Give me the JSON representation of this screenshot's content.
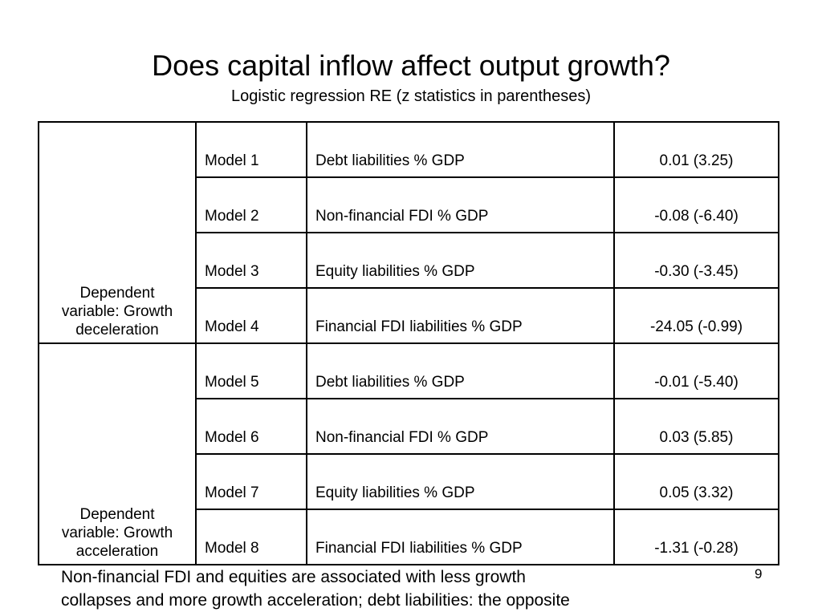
{
  "slide": {
    "title": "Does capital inflow affect output growth?",
    "subtitle": "Logistic regression RE (z statistics in parentheses)",
    "footnote_line1": "Non-financial FDI and equities are associated with less growth",
    "footnote_line2": "collapses and more growth acceleration; debt liabilities: the opposite",
    "page_number": "9"
  },
  "table": {
    "groups": [
      {
        "label_lines": [
          "Dependent",
          "variable: Growth",
          "deceleration"
        ],
        "rows": [
          {
            "model": "Model 1",
            "variable": "Debt liabilities % GDP",
            "value": "0.01 (3.25)"
          },
          {
            "model": "Model 2",
            "variable": "Non-financial FDI % GDP",
            "value": "-0.08 (-6.40)"
          },
          {
            "model": "Model 3",
            "variable": "Equity liabilities % GDP",
            "value": "-0.30 (-3.45)"
          },
          {
            "model": "Model 4",
            "variable": "Financial FDI liabilities % GDP",
            "value": "-24.05 (-0.99)"
          }
        ]
      },
      {
        "label_lines": [
          "Dependent",
          "variable: Growth",
          "acceleration"
        ],
        "rows": [
          {
            "model": "Model 5",
            "variable": "Debt liabilities % GDP",
            "value": "-0.01 (-5.40)"
          },
          {
            "model": "Model 6",
            "variable": "Non-financial FDI % GDP",
            "value": "0.03 (5.85)"
          },
          {
            "model": "Model 7",
            "variable": "Equity liabilities % GDP",
            "value": "0.05 (3.32)"
          },
          {
            "model": "Model 8",
            "variable": "Financial FDI liabilities % GDP",
            "value": "-1.31 (-0.28)"
          }
        ]
      }
    ]
  }
}
